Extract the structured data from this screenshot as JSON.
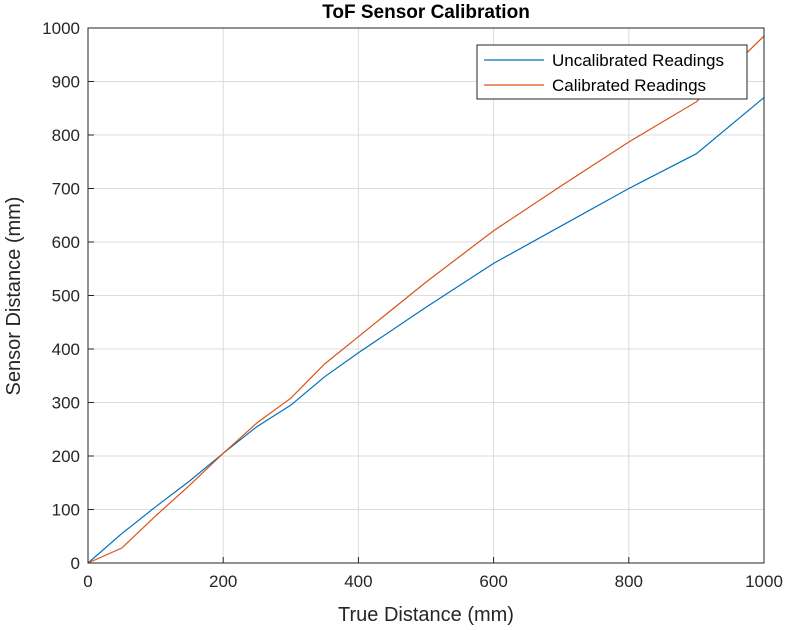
{
  "chart_data": {
    "type": "line",
    "title": "ToF Sensor Calibration",
    "xlabel": "True Distance (mm)",
    "ylabel": "Sensor Distance (mm)",
    "xlim": [
      0,
      1000
    ],
    "ylim": [
      0,
      1000
    ],
    "xticks": [
      0,
      200,
      400,
      600,
      800,
      1000
    ],
    "yticks": [
      0,
      100,
      200,
      300,
      400,
      500,
      600,
      700,
      800,
      900,
      1000
    ],
    "grid": true,
    "legend_position": "top-right",
    "series": [
      {
        "name": "Uncalibrated Readings",
        "color": "#0072BD",
        "x": [
          0,
          50,
          100,
          150,
          200,
          250,
          300,
          350,
          400,
          500,
          600,
          700,
          800,
          900,
          1000
        ],
        "y": [
          0,
          55,
          105,
          153,
          205,
          255,
          295,
          348,
          393,
          478,
          560,
          630,
          700,
          765,
          870
        ]
      },
      {
        "name": "Calibrated Readings",
        "color": "#D95319",
        "x": [
          0,
          50,
          100,
          150,
          200,
          250,
          300,
          350,
          400,
          500,
          600,
          700,
          800,
          900,
          1000
        ],
        "y": [
          0,
          28,
          88,
          145,
          205,
          262,
          308,
          372,
          423,
          525,
          621,
          705,
          787,
          862,
          985
        ]
      }
    ]
  }
}
